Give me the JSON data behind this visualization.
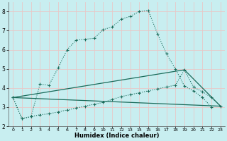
{
  "xlabel": "Humidex (Indice chaleur)",
  "bg_color": "#c8eef0",
  "grid_color": "#e8c8c8",
  "line_color": "#1a6b5a",
  "xlim": [
    -0.5,
    23.5
  ],
  "ylim": [
    2.0,
    8.5
  ],
  "xticks": [
    0,
    1,
    2,
    3,
    4,
    5,
    6,
    7,
    8,
    9,
    10,
    11,
    12,
    13,
    14,
    15,
    16,
    17,
    18,
    19,
    20,
    21,
    22,
    23
  ],
  "yticks": [
    2,
    3,
    4,
    5,
    6,
    7,
    8
  ],
  "line1_x": [
    0,
    1,
    2,
    3,
    4,
    5,
    6,
    7,
    8,
    9,
    10,
    11,
    12,
    13,
    14,
    15,
    16,
    17,
    18,
    19,
    20,
    21,
    22
  ],
  "line1_y": [
    3.5,
    2.4,
    2.5,
    4.2,
    4.15,
    5.05,
    6.0,
    6.5,
    6.55,
    6.6,
    7.05,
    7.2,
    7.6,
    7.75,
    8.0,
    8.05,
    6.85,
    5.8,
    5.0,
    4.1,
    3.85,
    3.5,
    3.0
  ],
  "line2_x": [
    0,
    1,
    2,
    3,
    4,
    5,
    6,
    7,
    8,
    9,
    10,
    11,
    12,
    13,
    14,
    15,
    16,
    17,
    18,
    19,
    20,
    21,
    22,
    23
  ],
  "line2_y": [
    3.5,
    2.4,
    2.5,
    2.6,
    2.65,
    2.75,
    2.85,
    2.95,
    3.05,
    3.15,
    3.25,
    3.4,
    3.55,
    3.65,
    3.75,
    3.85,
    3.95,
    4.05,
    4.15,
    4.95,
    4.05,
    3.8,
    3.5,
    3.05
  ],
  "line3_x": [
    0,
    19,
    23
  ],
  "line3_y": [
    3.5,
    4.95,
    3.05
  ],
  "line4_x": [
    0,
    23
  ],
  "line4_y": [
    3.5,
    3.05
  ]
}
